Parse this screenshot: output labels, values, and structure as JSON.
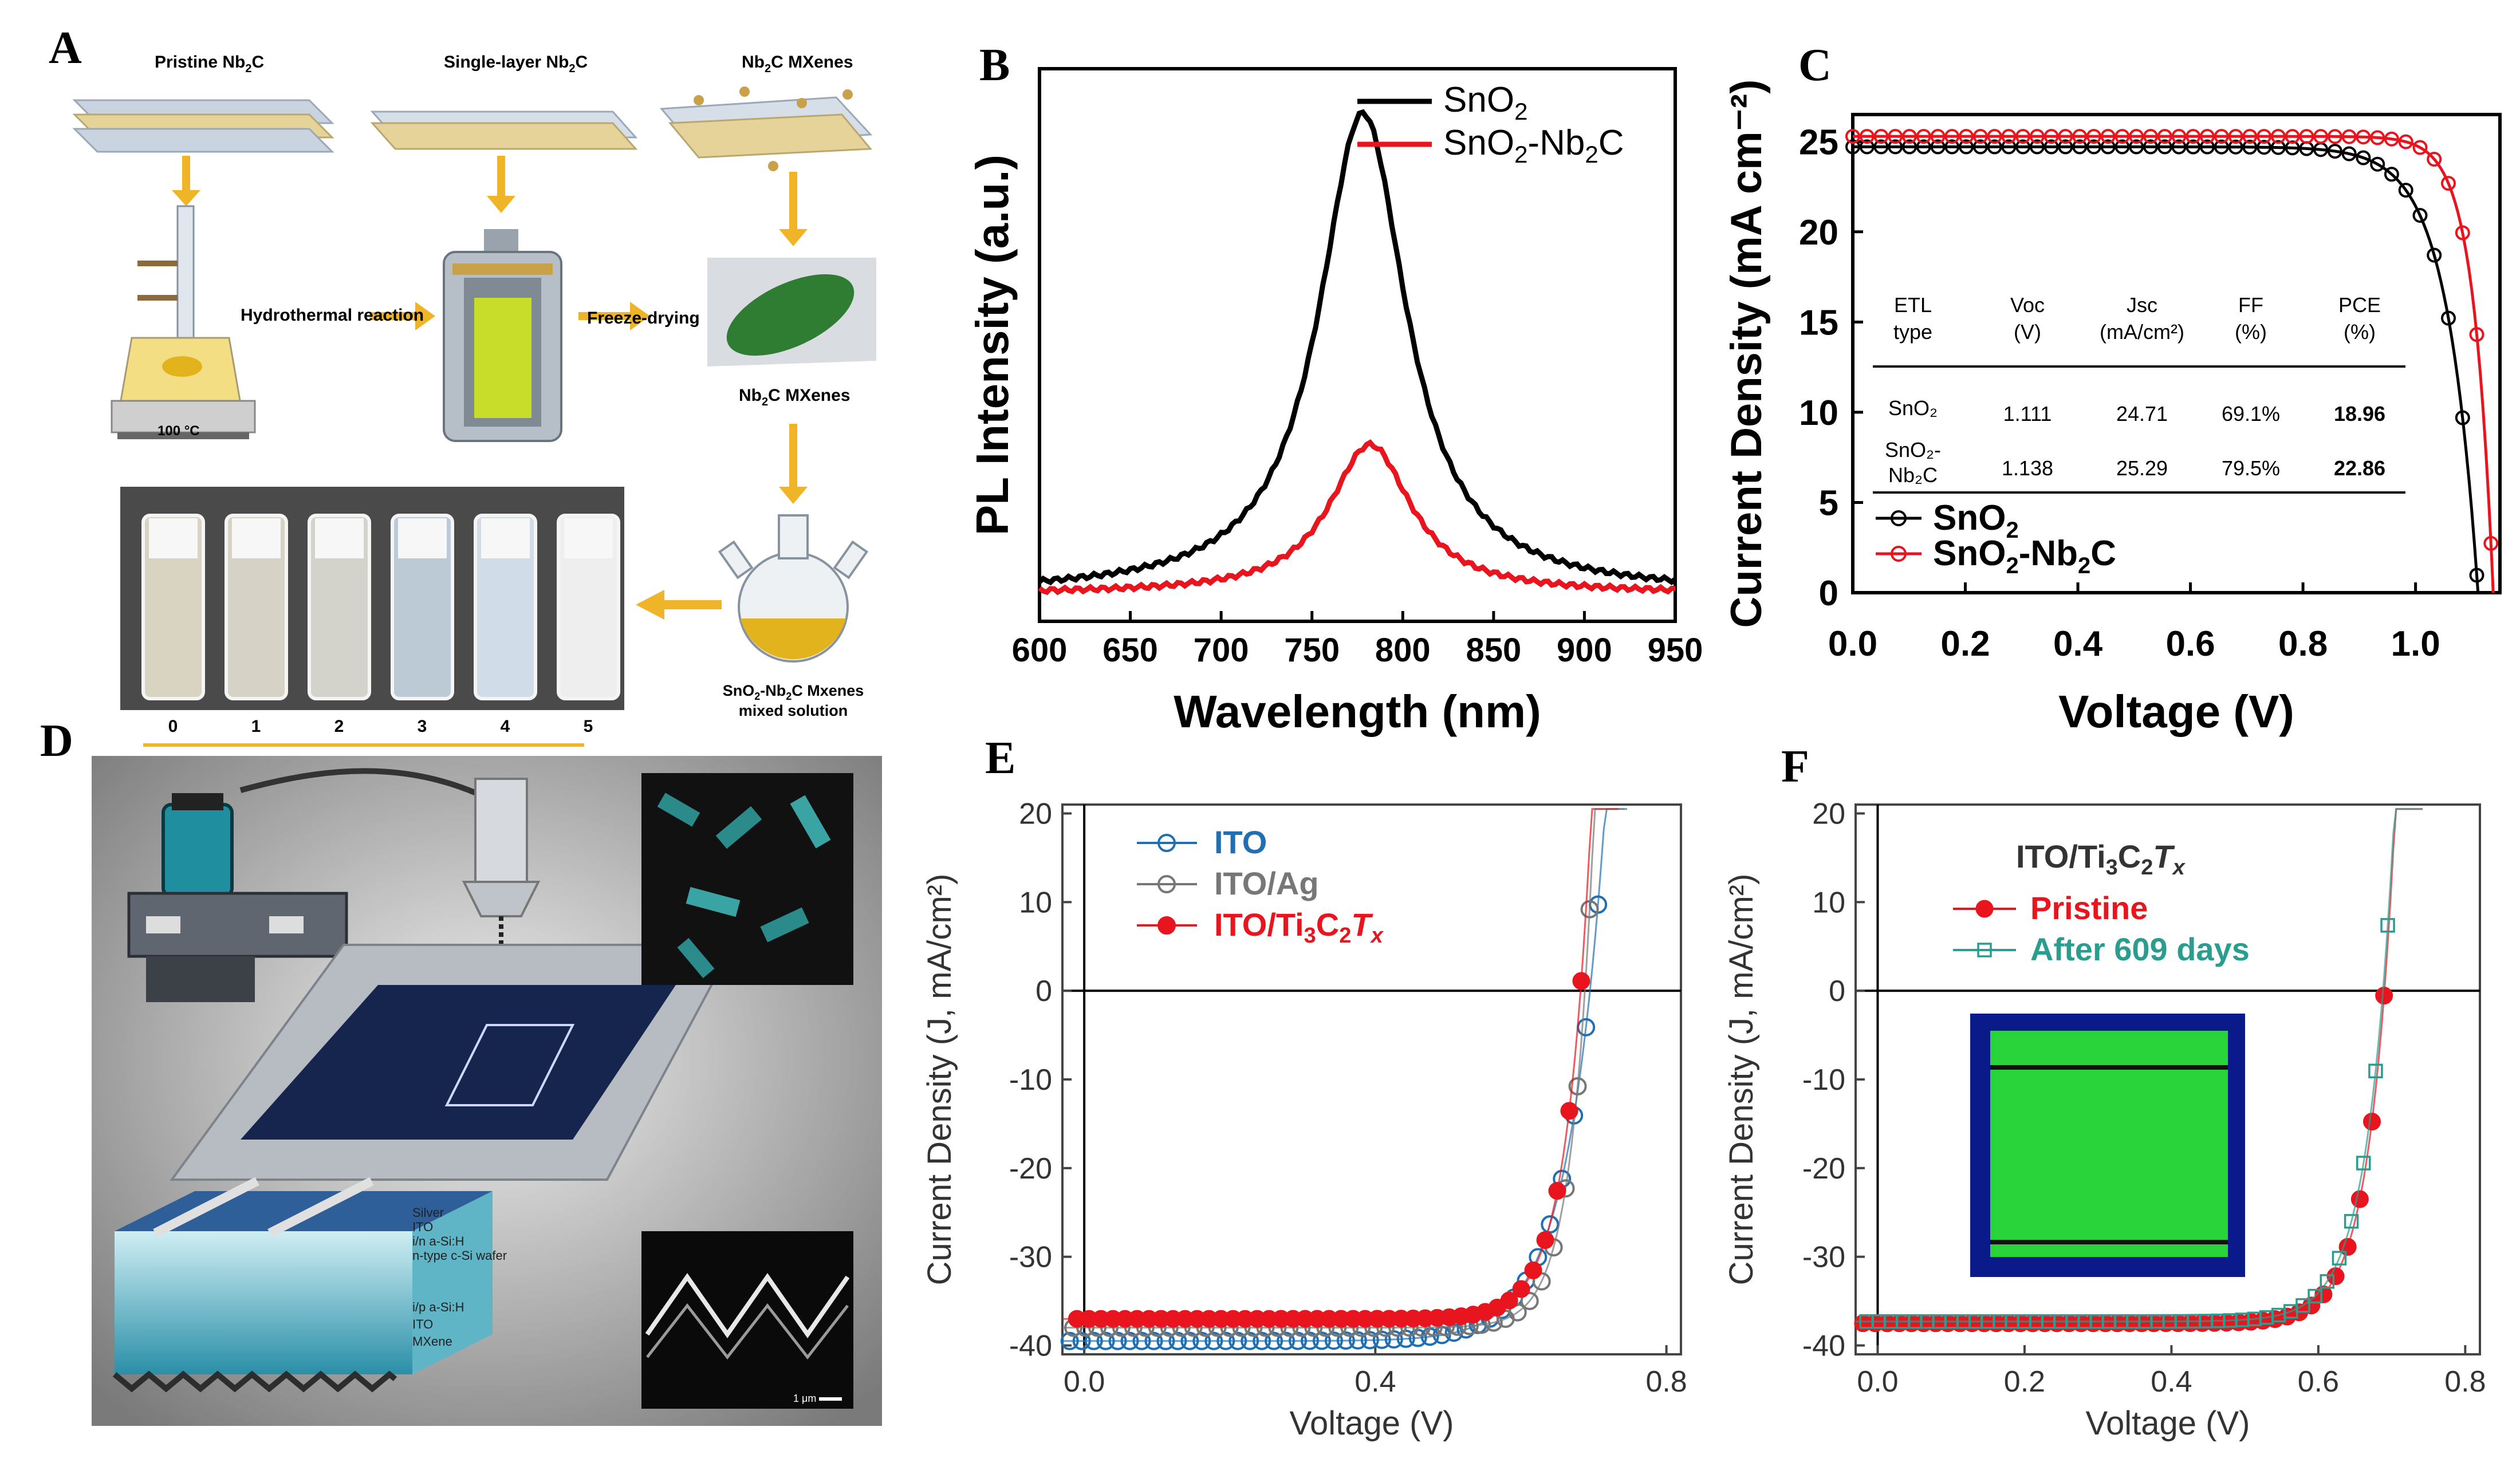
{
  "panels": {
    "a": "A",
    "b": "B",
    "c": "C",
    "d": "D",
    "e": "E",
    "f": "F"
  },
  "panel_a": {
    "labels": {
      "pristine": "Pristine Nb",
      "single": "Single-layer Nb",
      "mxenes": "Nb",
      "mxenes_top_suffix": "C MXenes",
      "sub2": "2",
      "suffix_c": "C",
      "hydro": "Hydrothermal reaction",
      "freeze": "Freeze-drying",
      "temp": "100 °C",
      "nbc_mxenes": "Nb",
      "nbc_suffix": "C MXenes",
      "mixed_l1a": "SnO",
      "mixed_l1b": "-Nb",
      "mixed_l1c": "C Mxenes",
      "mixed_l2": "mixed solution"
    },
    "vials": [
      "0",
      "1",
      "2",
      "3",
      "4",
      "5"
    ]
  },
  "chart_data": [
    {
      "id": "B",
      "type": "line",
      "xlabel": "Wavelength (nm)",
      "ylabel": "PL Intensity (a.u.)",
      "xlim": [
        600,
        950
      ],
      "x_ticks": [
        "600",
        "650",
        "700",
        "750",
        "800",
        "850",
        "900",
        "950"
      ],
      "series": [
        {
          "name": "SnO2",
          "legend": "SnO",
          "legend_sub": "2",
          "color": "#000000",
          "peak_x": 778,
          "peak_y": 0.92,
          "width": 32,
          "baseline": 0.05
        },
        {
          "name": "SnO2-Nb2C",
          "legend": "SnO",
          "legend_mid": "-Nb",
          "legend_end": "C",
          "legend_sub": "2",
          "color": "#e8141e",
          "peak_x": 782,
          "peak_y": 0.32,
          "width": 30,
          "baseline": 0.05
        }
      ]
    },
    {
      "id": "C",
      "type": "line",
      "xlabel": "Voltage (V)",
      "ylabel": "Current Density (mA cm⁻²)",
      "xlim": [
        0,
        1.15
      ],
      "ylim": [
        0,
        26.5
      ],
      "x_ticks": [
        "0.0",
        "0.2",
        "0.4",
        "0.6",
        "0.8",
        "1.0"
      ],
      "y_ticks": [
        "0",
        "5",
        "10",
        "15",
        "20",
        "25"
      ],
      "series": [
        {
          "name": "SnO2",
          "legend": "SnO",
          "legend_sub": "2",
          "color": "#000000",
          "voc": 1.111,
          "jsc": 24.71,
          "n": 0.055
        },
        {
          "name": "SnO2-Nb2C",
          "legend": "SnO",
          "legend_mid": "-Nb",
          "legend_end": "C",
          "legend_sub": "2",
          "color": "#e8141e",
          "voc": 1.138,
          "jsc": 25.29,
          "n": 0.035
        }
      ],
      "table": {
        "headers": [
          [
            "ETL",
            "type"
          ],
          [
            "Voc",
            "(V)"
          ],
          [
            "Jsc",
            "(mA/cm²)"
          ],
          [
            "FF",
            "(%)"
          ],
          [
            "PCE",
            "(%)"
          ]
        ],
        "rows": [
          {
            "etl": [
              "SnO₂"
            ],
            "voc": "1.111",
            "jsc": "24.71",
            "ff": "69.1%",
            "pce": "18.96"
          },
          {
            "etl": [
              "SnO₂-",
              "Nb₂C"
            ],
            "voc": "1.138",
            "jsc": "25.29",
            "ff": "79.5%",
            "pce": "22.86"
          }
        ]
      }
    },
    {
      "id": "E",
      "type": "scatter",
      "xlabel": "Voltage (V)",
      "ylabel": "Current Density (J, mA/cm²)",
      "xlim": [
        -0.03,
        0.82
      ],
      "ylim": [
        -41,
        21
      ],
      "x_ticks": [
        "0.0",
        "0.4",
        "0.8"
      ],
      "y_ticks": [
        "20",
        "10",
        "0",
        "-10",
        "-20",
        "-30",
        "-40"
      ],
      "series": [
        {
          "name": "ITO",
          "color": "#1f6fb2",
          "jsc": -39.5,
          "voc": 0.695,
          "n": 0.05
        },
        {
          "name": "ITO/Ag",
          "color": "#777777",
          "jsc": -38.0,
          "voc": 0.688,
          "n": 0.03
        },
        {
          "name": "ITO/Ti3C2Tx",
          "color": "#e8141e",
          "jsc": -37.0,
          "voc": 0.682,
          "n": 0.034
        }
      ],
      "legend": {
        "ito": "ITO",
        "itoag": "ITO/Ag",
        "tc_a": "ITO/Ti",
        "tc_b": "3",
        "tc_c": "C",
        "tc_d": "2",
        "tc_e": "T",
        "tc_f": "x"
      }
    },
    {
      "id": "F",
      "type": "scatter",
      "xlabel": "Voltage (V)",
      "ylabel": "Current Density (J, mA/cm²)",
      "xlim": [
        -0.03,
        0.82
      ],
      "ylim": [
        -41,
        21
      ],
      "x_ticks": [
        "0.0",
        "0.2",
        "0.4",
        "0.6",
        "0.8"
      ],
      "y_ticks": [
        "20",
        "10",
        "0",
        "-10",
        "-20",
        "-30",
        "-40"
      ],
      "series": [
        {
          "name": "Pristine",
          "color": "#e8141e",
          "jsc": -37.5,
          "voc": 0.69,
          "n": 0.034
        },
        {
          "name": "After 609 days",
          "color": "#2a9d8f",
          "jsc": -37.3,
          "voc": 0.688,
          "n": 0.036
        }
      ],
      "title": {
        "a": "ITO/Ti",
        "b": "3",
        "c": "C",
        "d": "2",
        "e": "T",
        "f": "x"
      }
    }
  ],
  "panel_d": {
    "layers": [
      "Silver",
      "ITO",
      "i/n a-Si:H",
      "n-type c-Si wafer",
      "i/p a-Si:H",
      "ITO",
      "MXene"
    ],
    "scale": "1 μm"
  }
}
